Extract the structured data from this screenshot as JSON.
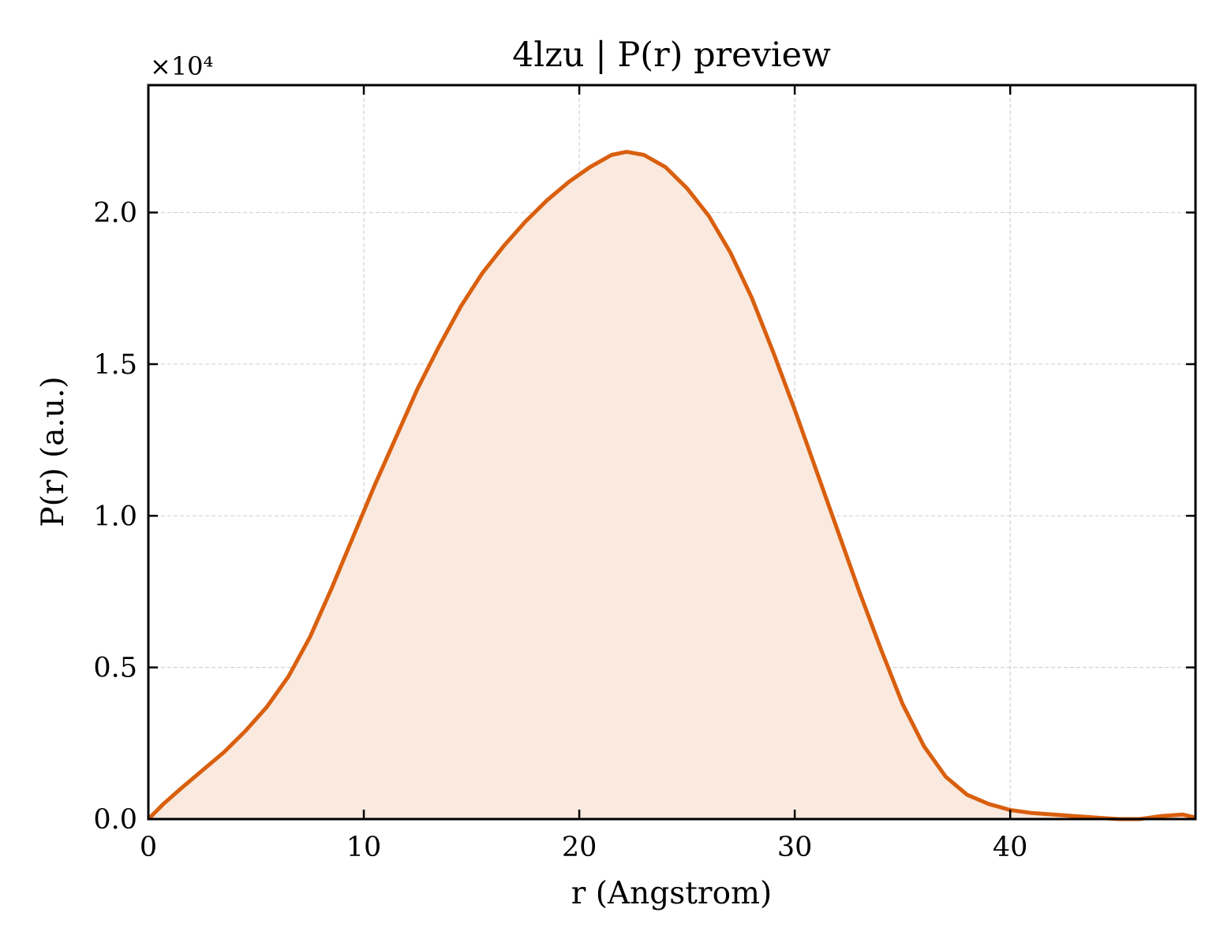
{
  "chart_data": {
    "type": "area",
    "title": "4lzu | P(r) preview",
    "xlabel": "r (Angstrom)",
    "ylabel": "P(r) (a.u.)",
    "y_multiplier_label": "×10⁴",
    "xlim": [
      0,
      48.6
    ],
    "ylim": [
      0,
      2.42
    ],
    "x_ticks": [
      0,
      10,
      20,
      30,
      40
    ],
    "x_tick_labels": [
      "0",
      "10",
      "20",
      "30",
      "40"
    ],
    "y_ticks": [
      0,
      0.5,
      1.0,
      1.5,
      2.0
    ],
    "y_tick_labels": [
      "0.0",
      "0.5",
      "1.0",
      "1.5",
      "2.0"
    ],
    "grid": true,
    "colors": {
      "line": "#d95f0e",
      "fill": "#f9e9de"
    },
    "series": [
      {
        "x": [
          0,
          0.7,
          1.5,
          2.5,
          3.5,
          4.5,
          5.5,
          6.5,
          7.5,
          8.5,
          9.5,
          10.5,
          11.5,
          12.5,
          13.5,
          14.5,
          15.5,
          16.5,
          17.5,
          18.5,
          19.5,
          20.5,
          21.5,
          22.2,
          23,
          24,
          25,
          26,
          27,
          28,
          29,
          30,
          31,
          32,
          33,
          34,
          35,
          36,
          37,
          38,
          39,
          40,
          41,
          42,
          43,
          44,
          45,
          46,
          47,
          48,
          48.6
        ],
        "y": [
          0,
          0.05,
          0.1,
          0.16,
          0.22,
          0.29,
          0.37,
          0.47,
          0.6,
          0.76,
          0.93,
          1.1,
          1.26,
          1.42,
          1.56,
          1.69,
          1.8,
          1.89,
          1.97,
          2.04,
          2.1,
          2.15,
          2.19,
          2.2,
          2.19,
          2.15,
          2.08,
          1.99,
          1.87,
          1.72,
          1.54,
          1.35,
          1.15,
          0.95,
          0.75,
          0.56,
          0.38,
          0.24,
          0.14,
          0.08,
          0.05,
          0.03,
          0.02,
          0.015,
          0.01,
          0.005,
          0,
          0,
          0.01,
          0.015,
          0.005
        ]
      }
    ]
  }
}
